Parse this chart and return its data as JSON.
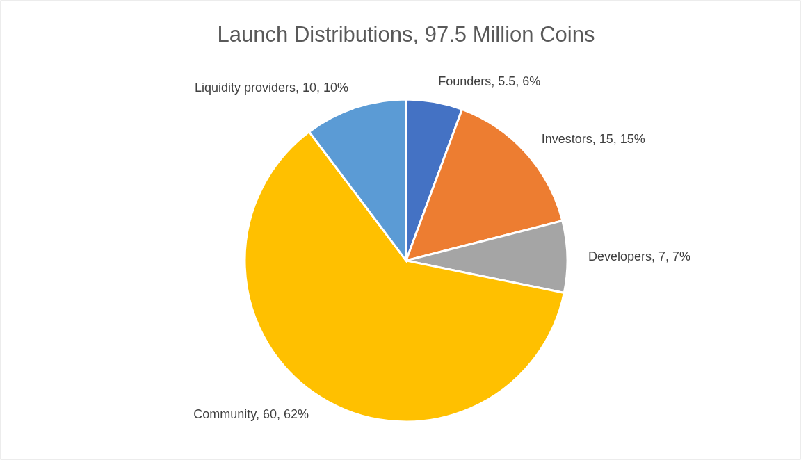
{
  "chart_data": {
    "type": "pie",
    "title": "Launch Distributions, 97.5 Million Coins",
    "categories": [
      "Founders",
      "Investors",
      "Developers",
      "Community",
      "Liquidity providers"
    ],
    "values": [
      5.5,
      15,
      7,
      60,
      10
    ],
    "value_labels": [
      "5.5, 6%",
      "15, 15%",
      "7, 7%",
      "60, 62%",
      "10, 10%"
    ],
    "colors": [
      "#4472c4",
      "#ed7d31",
      "#a5a5a5",
      "#ffc000",
      "#5b9bd5"
    ],
    "legend": false
  }
}
